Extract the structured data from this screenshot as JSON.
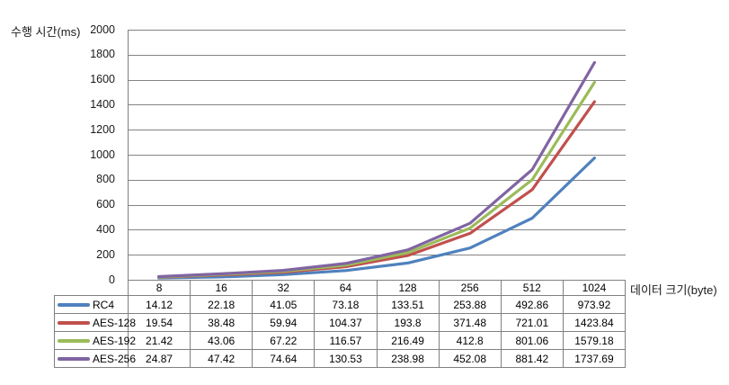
{
  "chart": {
    "y_axis_title": "수행 시간(ms)",
    "x_axis_title": "데이터 크기(byte)"
  },
  "chart_data": {
    "type": "line",
    "title": "",
    "xlabel": "데이터 크기(byte)",
    "ylabel": "수행 시간(ms)",
    "categories": [
      "8",
      "16",
      "32",
      "64",
      "128",
      "256",
      "512",
      "1024"
    ],
    "series": [
      {
        "name": "RC4",
        "color": "#4F81BD",
        "values": [
          "14.12",
          "22.18",
          "41.05",
          "73.18",
          "133.51",
          "253.88",
          "492.86",
          "973.92"
        ]
      },
      {
        "name": "AES-128",
        "color": "#C0504D",
        "values": [
          "19.54",
          "38.48",
          "59.94",
          "104.37",
          "193.8",
          "371.48",
          "721.01",
          "1423.84"
        ]
      },
      {
        "name": "AES-192",
        "color": "#9BBB59",
        "values": [
          "21.42",
          "43.06",
          "67.22",
          "116.57",
          "216.49",
          "412.8",
          "801.06",
          "1579.18"
        ]
      },
      {
        "name": "AES-256",
        "color": "#8064A2",
        "values": [
          "24.87",
          "47.42",
          "74.64",
          "130.53",
          "238.98",
          "452.08",
          "881.42",
          "1737.69"
        ]
      }
    ],
    "ylim": [
      0,
      2000
    ],
    "ytick_step": 200,
    "ytick_labels": [
      "0",
      "200",
      "400",
      "600",
      "800",
      "1000",
      "1200",
      "1400",
      "1600",
      "1800",
      "2000"
    ],
    "grid": true,
    "legend_position": "table-left",
    "colors": {
      "gridline": "#848484",
      "axis_line": "#808080",
      "table_border": "#808080",
      "text": "#000000"
    }
  }
}
